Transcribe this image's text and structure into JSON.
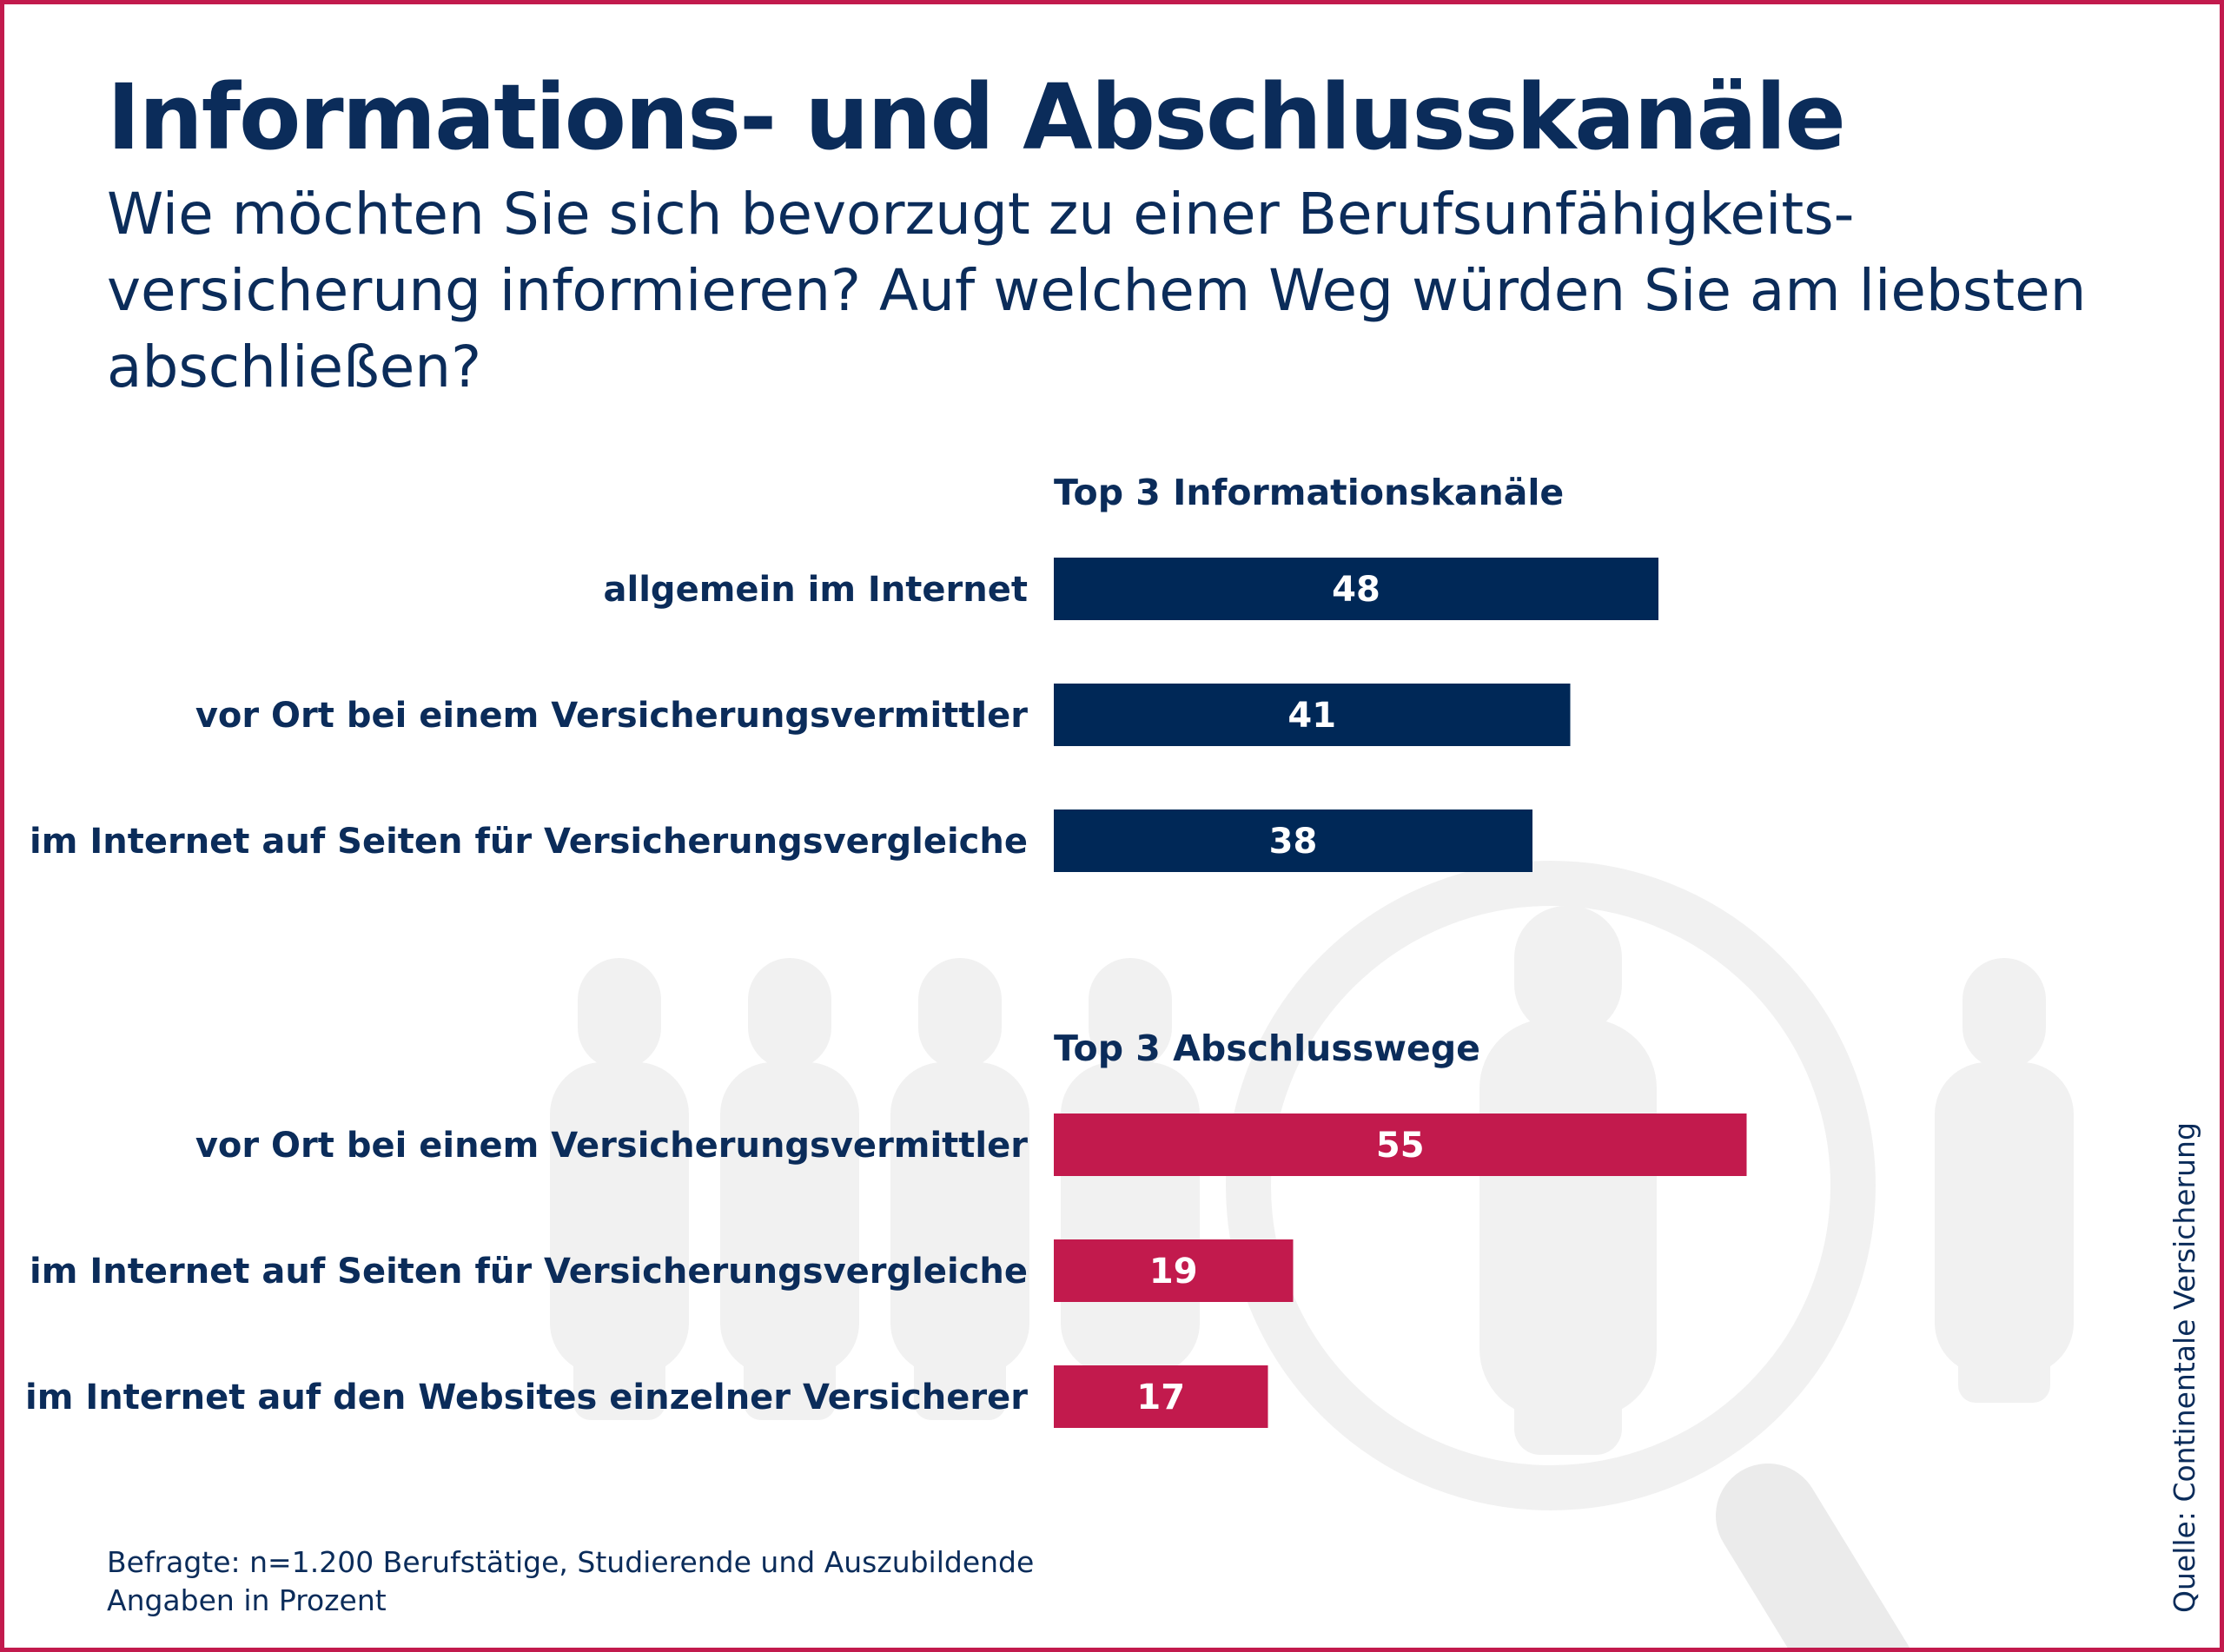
{
  "title": "Informations- und Abschlusskanäle",
  "subtitle": "Wie möchten Sie sich bevorzugt zu einer Berufsunfähigkeits-versicherung informieren? Auf welchem Weg würden Sie am liebsten abschließen?",
  "footnote": {
    "line1": "Befragte: n=1.200 Berufstätige, Studierende und Auszubildende",
    "line2": "Angaben in Prozent"
  },
  "source": "Quelle: Continentale Versicherung",
  "colors": {
    "primary_navy": "#002857",
    "accent_crimson": "#c21a4d",
    "frame": "#c21a4d",
    "background_art": "#f1f1f1"
  },
  "decoration": {
    "icons": [
      "people-silhouette-icon",
      "magnifier-icon"
    ]
  },
  "chart_data": [
    {
      "type": "bar",
      "orientation": "horizontal",
      "title": "Top 3 Informationskanäle",
      "categories": [
        "allgemein im Internet",
        "vor Ort bei einem Versicherungsvermittler",
        "im Internet auf Seiten für Versicherungsvergleiche"
      ],
      "values": [
        48,
        41,
        38
      ],
      "color": "#002857",
      "data_labels": true,
      "grid": false
    },
    {
      "type": "bar",
      "orientation": "horizontal",
      "title": "Top 3 Abschlusswege",
      "categories": [
        "vor Ort bei einem Versicherungsvermittler",
        "im Internet auf Seiten für Versicherungsvergleiche",
        "im Internet auf den Websites einzelner Versicherer"
      ],
      "values": [
        55,
        19,
        17
      ],
      "color": "#c21a4d",
      "data_labels": true,
      "grid": false
    }
  ]
}
